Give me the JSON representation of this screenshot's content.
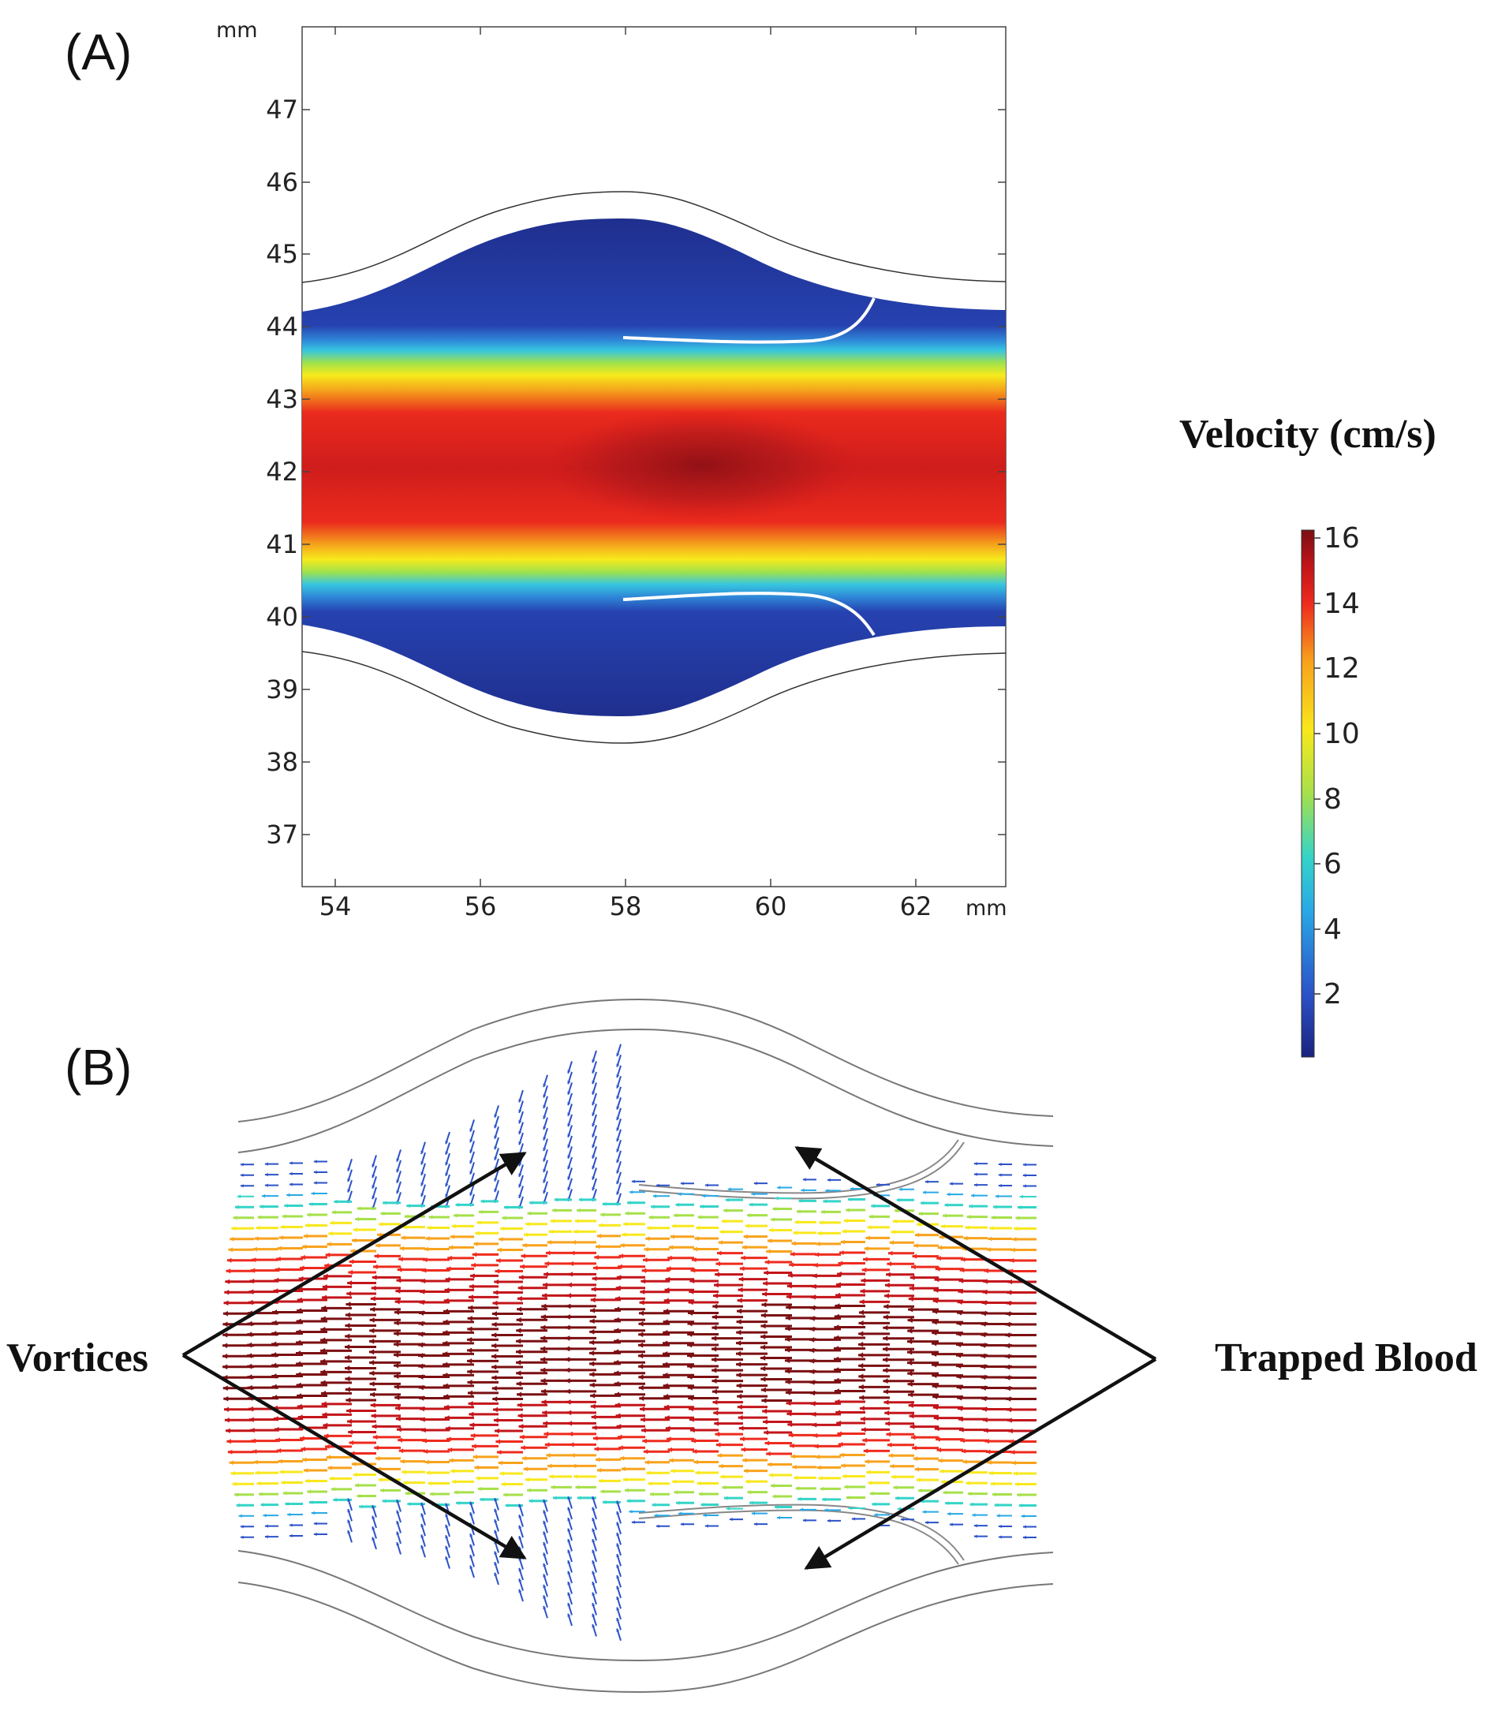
{
  "panels": {
    "a": {
      "label": "(A)"
    },
    "b": {
      "label": "(B)"
    }
  },
  "axes": {
    "x_unit": "mm",
    "y_unit": "mm",
    "x_ticks": [
      "54",
      "56",
      "58",
      "60",
      "62"
    ],
    "y_ticks": [
      "47",
      "46",
      "45",
      "44",
      "43",
      "42",
      "41",
      "40",
      "39",
      "38",
      "37"
    ]
  },
  "colorbar": {
    "title": "Velocity (cm/s)",
    "ticks": [
      "16",
      "14",
      "12",
      "10",
      "8",
      "6",
      "4",
      "2"
    ],
    "colors": [
      "#1a237e",
      "#2b52c8",
      "#29a9e6",
      "#35d4c8",
      "#a6e04a",
      "#f8e81c",
      "#f8a21c",
      "#ee2b1e",
      "#c3151a",
      "#7b0f12"
    ]
  },
  "annotations": {
    "left": "Vortices",
    "right": "Trapped Blood"
  }
}
